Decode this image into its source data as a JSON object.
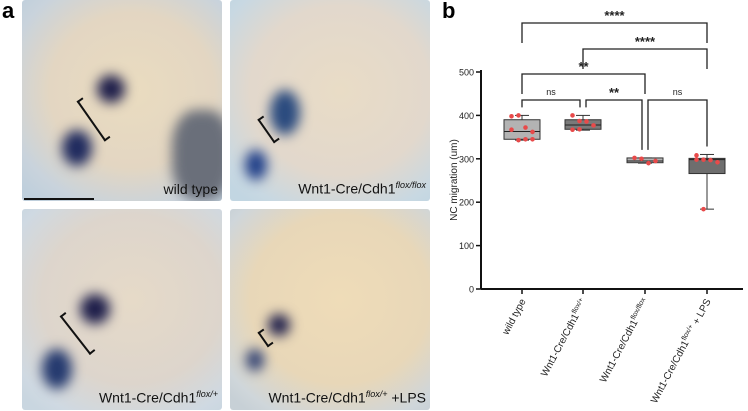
{
  "panel_a": {
    "letter": "a",
    "photos": [
      {
        "label": "wild type",
        "sup": "",
        "suffix": ""
      },
      {
        "label": "Wnt1-Cre/Cdh1",
        "sup": "flox/flox",
        "suffix": ""
      },
      {
        "label": "Wnt1-Cre/Cdh1",
        "sup": "flox/+",
        "suffix": ""
      },
      {
        "label": "Wnt1-Cre/Cdh1",
        "sup": "flox/+",
        "suffix": " +LPS"
      }
    ]
  },
  "panel_b": {
    "letter": "b"
  },
  "chart_data": {
    "type": "box",
    "ylabel": "NC migration (um)",
    "ylim": [
      0,
      500
    ],
    "yticks": [
      0,
      100,
      200,
      300,
      400,
      500
    ],
    "categories": [
      {
        "label": "wild type",
        "sup": "",
        "suffix": ""
      },
      {
        "label": "Wnt1-Cre/Cdh1",
        "sup": "flox/+",
        "suffix": ""
      },
      {
        "label": "Wnt1-Cre/Cdh1",
        "sup": "flox/flox",
        "suffix": ""
      },
      {
        "label": "Wnt1-Cre/Cdh1",
        "sup": "flox/+",
        "suffix": " + LPS"
      }
    ],
    "boxes": [
      {
        "min": 343,
        "q1": 345,
        "median": 363,
        "q3": 390,
        "max": 400,
        "fill": "#b3b3b3",
        "points": [
          398,
          400,
          372,
          362,
          367,
          343,
          345,
          345
        ]
      },
      {
        "min": 366,
        "q1": 368,
        "median": 378,
        "q3": 390,
        "max": 400,
        "fill": "#7a7a7a",
        "points": [
          400,
          387,
          386,
          377,
          367,
          368
        ]
      },
      {
        "min": 290,
        "q1": 291,
        "median": 295,
        "q3": 302,
        "max": 302,
        "fill": "#b3b3b3",
        "points": [
          302,
          300,
          290,
          295
        ]
      },
      {
        "min": 184,
        "q1": 266,
        "median": 298,
        "q3": 301,
        "max": 310,
        "fill": "#6e6e6e",
        "points": [
          308,
          298,
          297,
          292,
          298,
          184
        ]
      }
    ],
    "point_color": "#e84a4a",
    "significance": [
      {
        "from": 0,
        "to": 1,
        "label": "ns",
        "level": 0
      },
      {
        "from": 1,
        "to": 2,
        "label": "**",
        "level": 0
      },
      {
        "from": 2,
        "to": 3,
        "label": "ns",
        "level": 0
      },
      {
        "from": 0,
        "to": 2,
        "label": "**",
        "level": 1
      },
      {
        "from": 1,
        "to": 3,
        "label": "****",
        "level": 2
      },
      {
        "from": 0,
        "to": 3,
        "label": "****",
        "level": 3
      }
    ]
  }
}
